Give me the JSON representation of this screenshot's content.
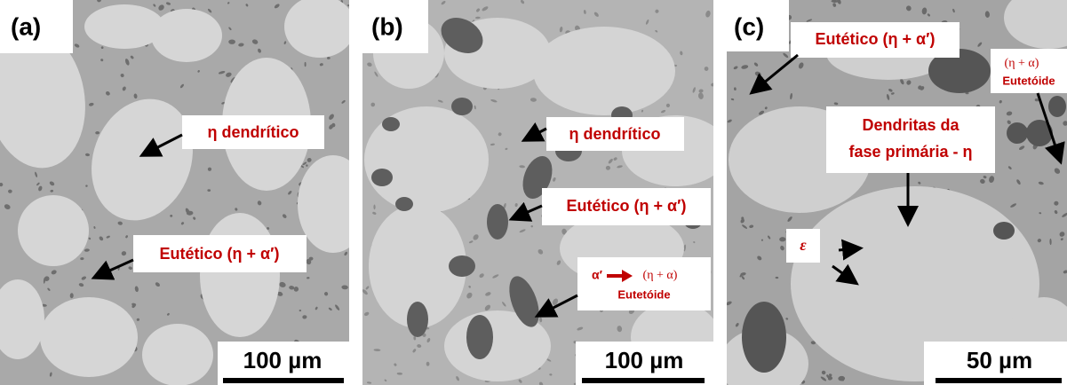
{
  "panels": [
    {
      "label": "(a)",
      "annotations": [
        "η dendrítico",
        "Eutético (η + α′)"
      ],
      "scale_bar": "100 µm"
    },
    {
      "label": "(b)",
      "annotations": [
        "η dendrítico",
        "Eutético (η + α′)"
      ],
      "transformation": {
        "from": "α′",
        "to": "(η + α)",
        "name": "Eutetóide"
      },
      "scale_bar": "100 µm"
    },
    {
      "label": "(c)",
      "annotations": [
        "Eutético (η + α′)",
        "ε"
      ],
      "eutectoid": {
        "phases": "(η + α)",
        "name": "Eutetóide"
      },
      "dendrites": [
        "Dendritas da",
        "fase primária - η"
      ],
      "scale_bar": "50 µm"
    }
  ]
}
